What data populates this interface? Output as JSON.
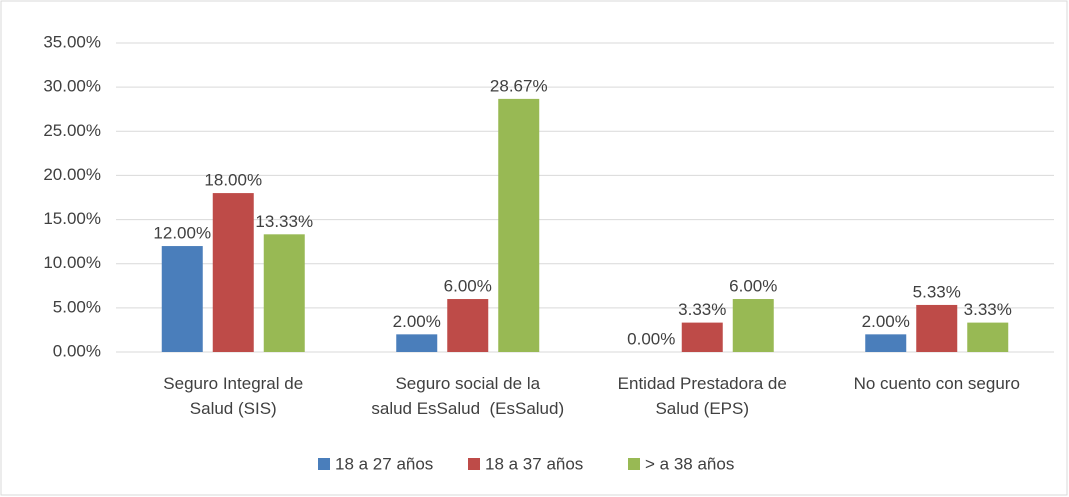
{
  "chart_data": {
    "type": "bar",
    "categories": [
      "Seguro Integral de\nSalud (SIS)",
      "Seguro social de la\nsalud EsSalud  (EsSalud)",
      "Entidad Prestadora de\nSalud (EPS)",
      "No cuento con seguro"
    ],
    "series": [
      {
        "name": "18 a 27 años",
        "color": "#4a7ebb",
        "values": [
          12,
          2,
          0,
          2
        ],
        "value_labels": [
          "12.00%",
          "2.00%",
          "0.00%",
          "2.00%"
        ]
      },
      {
        "name": "18 a 37 años",
        "color": "#be4b48",
        "values": [
          18,
          6,
          3.33,
          5.33
        ],
        "value_labels": [
          "18.00%",
          "6.00%",
          "3.33%",
          "5.33%"
        ]
      },
      {
        "name": "> a 38 años",
        "color": "#98b954",
        "values": [
          13.33,
          28.67,
          6,
          3.33
        ],
        "value_labels": [
          "13.33%",
          "28.67%",
          "6.00%",
          "3.33%"
        ]
      }
    ],
    "ylim": [
      0,
      35
    ],
    "yticks": [
      {
        "value": 0,
        "label": "0.00%"
      },
      {
        "value": 5,
        "label": "5.00%"
      },
      {
        "value": 10,
        "label": "10.00%"
      },
      {
        "value": 15,
        "label": "15.00%"
      },
      {
        "value": 20,
        "label": "20.00%"
      },
      {
        "value": 25,
        "label": "25.00%"
      },
      {
        "value": 30,
        "label": "30.00%"
      },
      {
        "value": 35,
        "label": "35.00%"
      }
    ],
    "grid": true,
    "legend": "bottom"
  }
}
